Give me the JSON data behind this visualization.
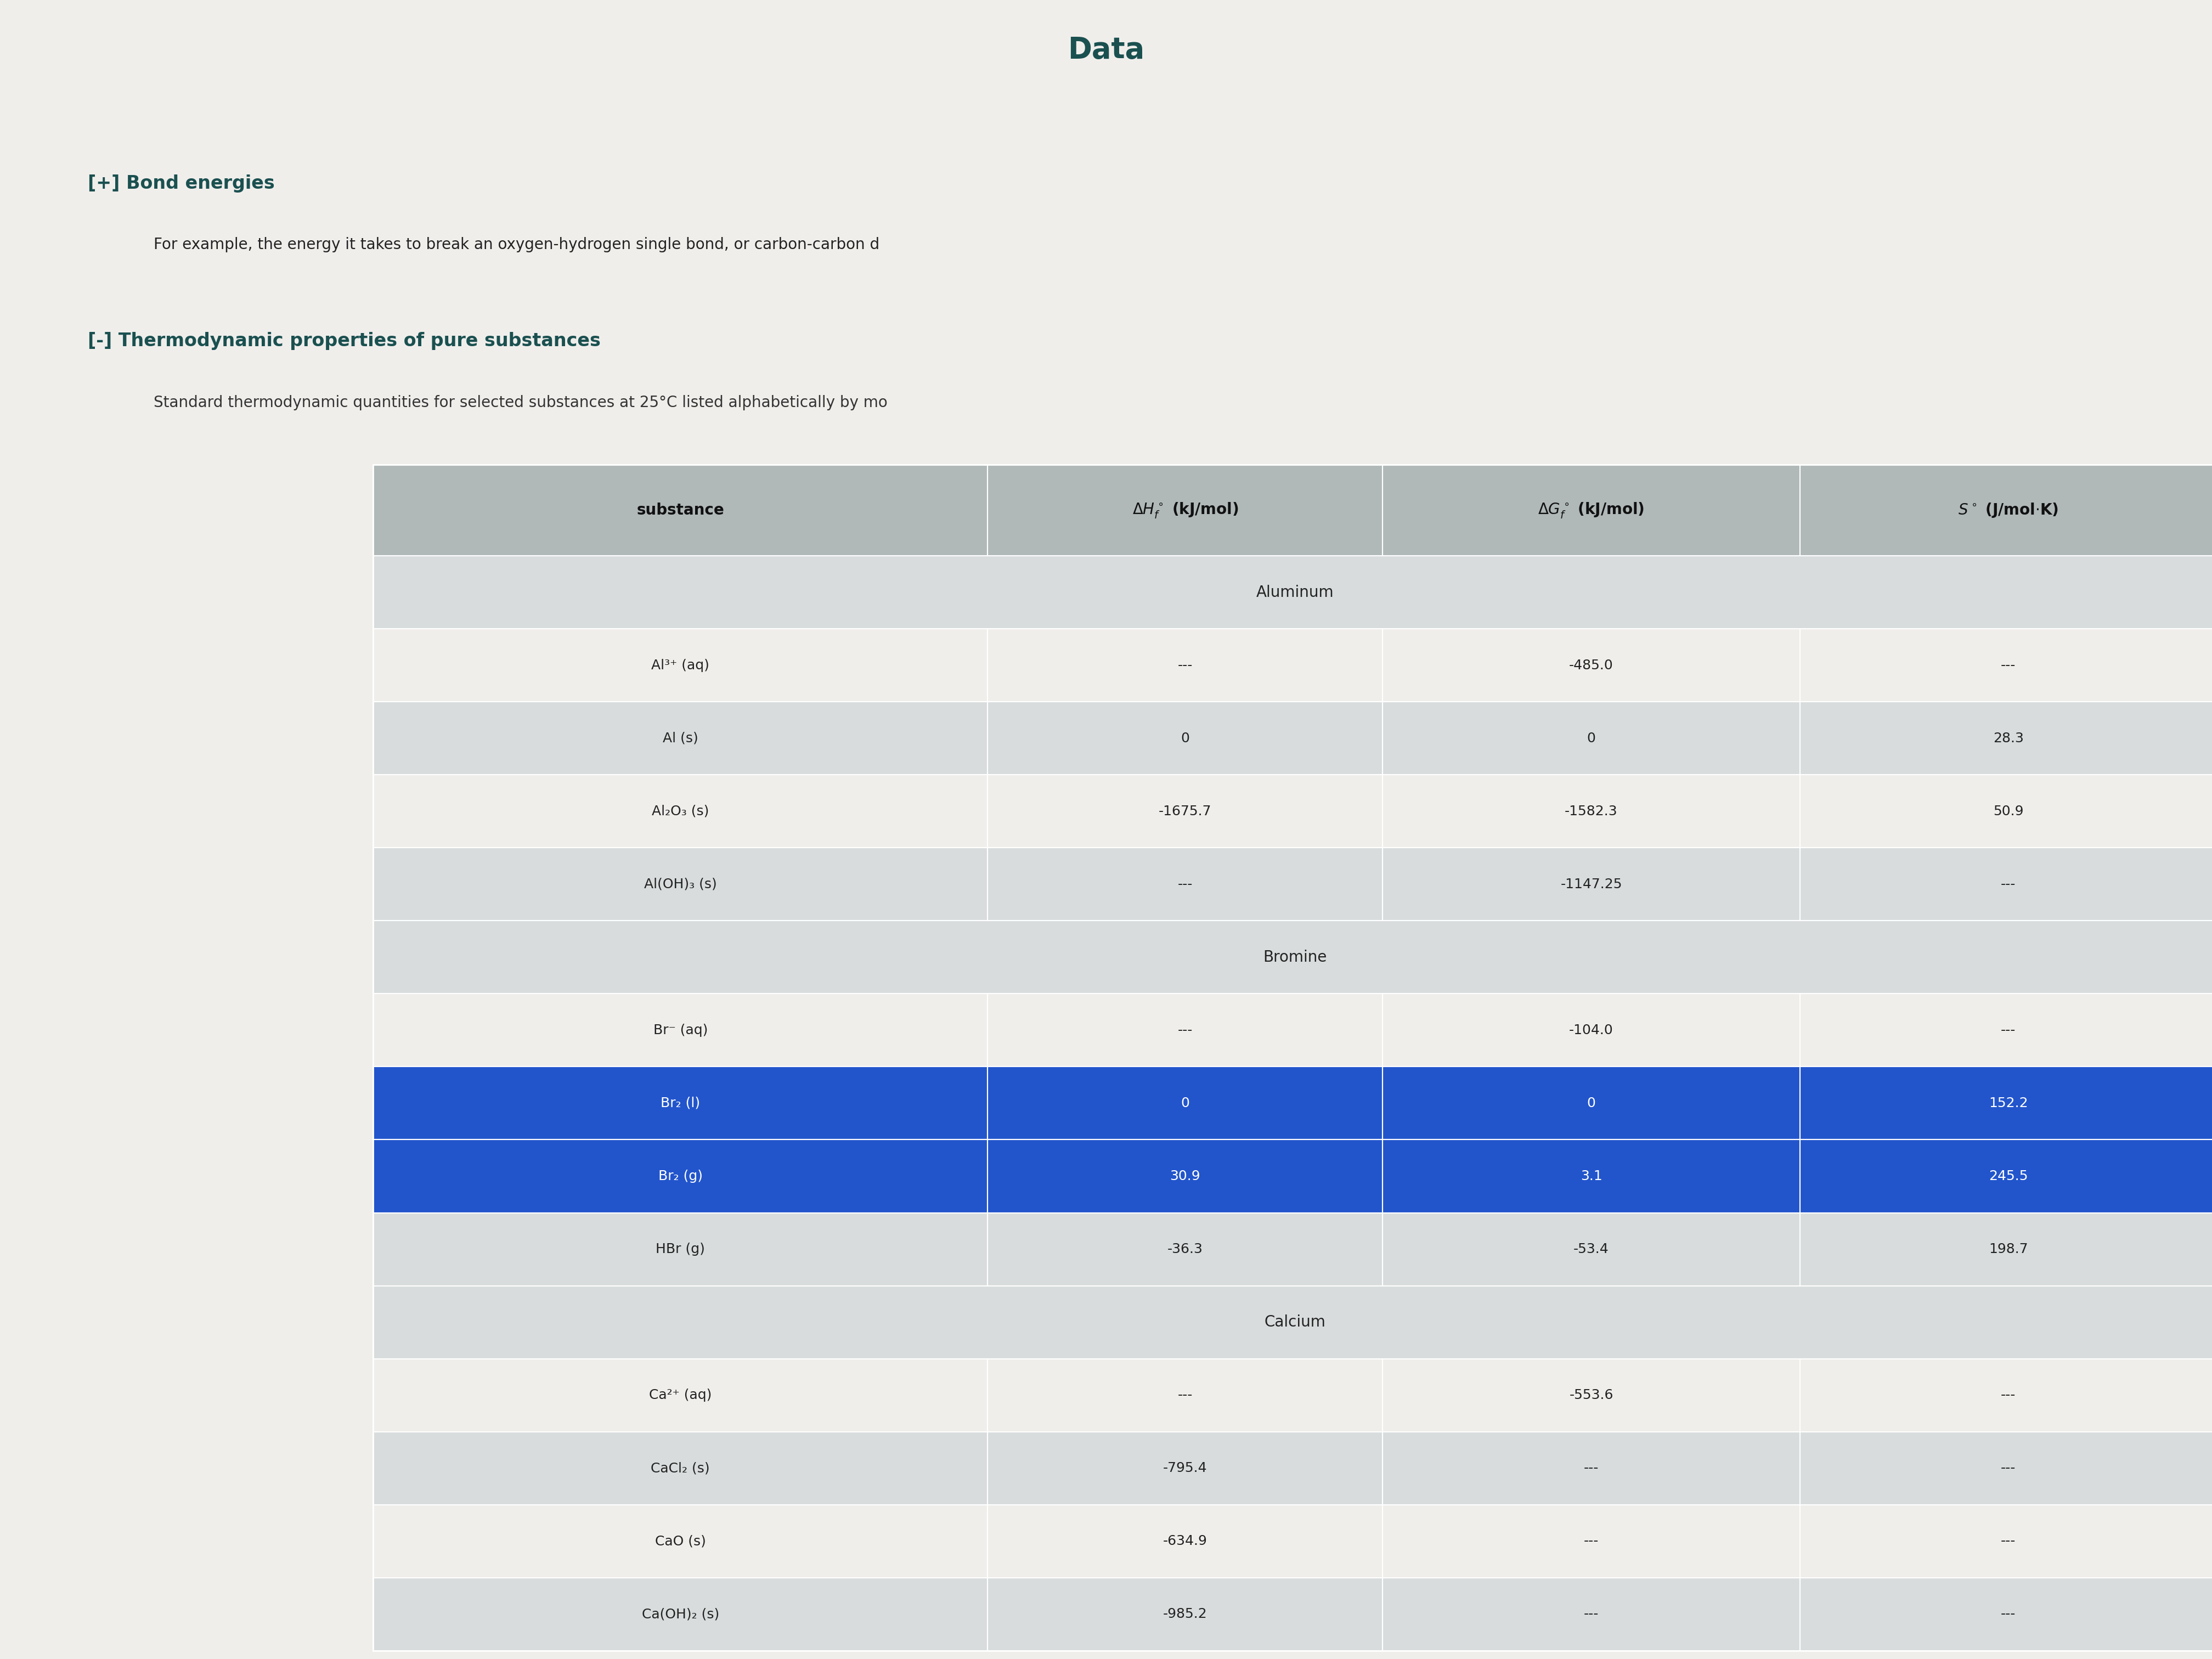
{
  "background_color": "#e8e8e8",
  "page_bg": "#f0eeeb",
  "header_text": "Data",
  "bond_heading": "[+] Bond energies",
  "bond_subtext": "For example, the energy it takes to break an oxygen-hydrogen single bond, or carbon-carbon d",
  "thermo_heading": "[-] Thermodynamic properties of pure substances",
  "thermo_subtext": "Standard thermodynamic quantities for selected substances at 25°C listed alphabetically by mo",
  "table_header_bg": "#b0b8b8",
  "table_row_bg_light": "#d8dcdc",
  "table_row_bg_white": "#f0eeeb",
  "highlight_blue": "#2255cc",
  "highlight_text": "#ffffff",
  "col_headers": [
    "substance",
    "ΔHₑ° (kJ/mol)",
    "ΔGₑ° (kJ/mol)",
    "S° (J/mol·K)"
  ],
  "section_rows": {
    "Aluminum": [
      [
        "Al³⁺ (aq)",
        "---",
        "-485.0",
        "---"
      ],
      [
        "Al (s)",
        "0",
        "0",
        "28.3"
      ],
      [
        "Al₂O₃ (s)",
        "-1675.7",
        "-1582.3",
        "50.9"
      ],
      [
        "Al(OH)₃ (s)",
        "---",
        "-1147.25",
        "---"
      ]
    ],
    "Bromine": [
      [
        "Br⁻ (aq)",
        "---",
        "-104.0",
        "---"
      ],
      [
        "Br₂ (l)",
        "0",
        "0",
        "152.2"
      ],
      [
        "Br₂ (g)",
        "30.9",
        "3.1",
        "245.5"
      ],
      [
        "HBr (g)",
        "-36.3",
        "-53.4",
        "198.7"
      ]
    ],
    "Calcium": [
      [
        "Ca²⁺ (aq)",
        "---",
        "-553.6",
        "---"
      ],
      [
        "CaCl₂ (s)",
        "-795.4",
        "---",
        "---"
      ],
      [
        "CaO (s)",
        "-634.9",
        "---",
        "---"
      ],
      [
        "Ca(OH)₂ (s)",
        "-985.2",
        "---",
        "---"
      ]
    ]
  },
  "highlighted_rows": {
    "Br₂ (l)": true,
    "Br₂ (g)": true
  }
}
